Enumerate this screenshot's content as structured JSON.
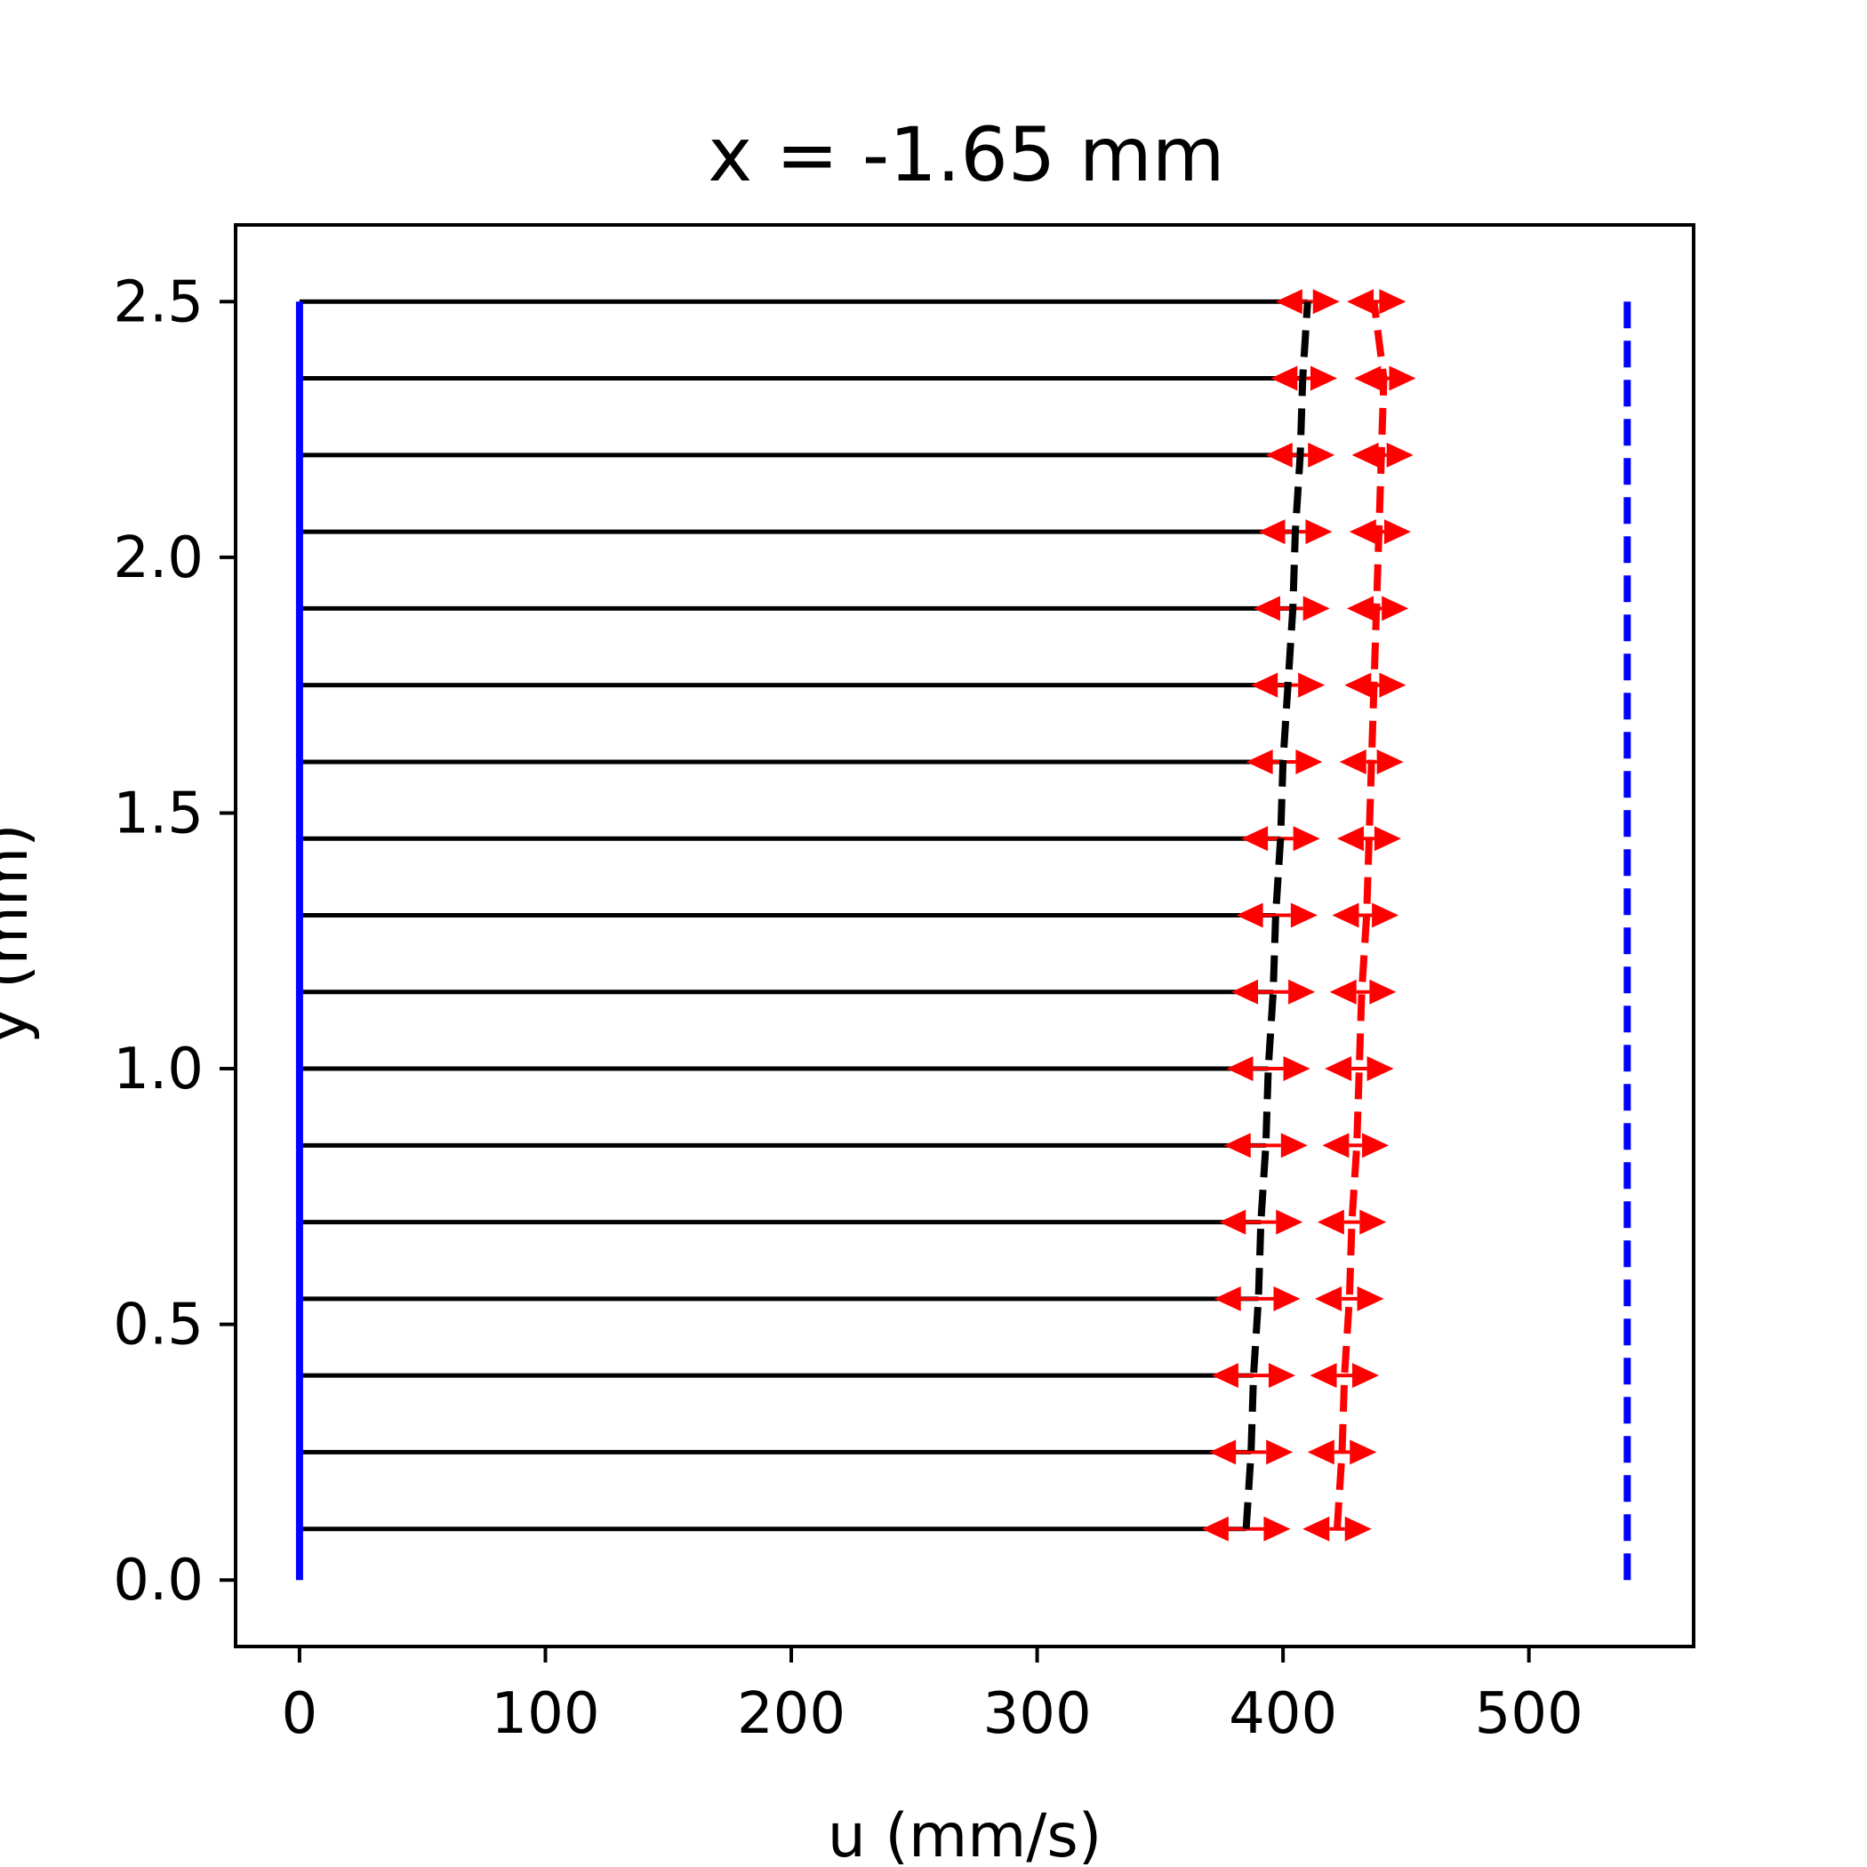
{
  "chart_data": {
    "type": "line",
    "title": "x = -1.65 mm",
    "xlabel": "u (mm/s)",
    "ylabel": "y (mm)",
    "xlim": [
      -26,
      567
    ],
    "ylim": [
      -0.13,
      2.65
    ],
    "xticks": [
      0,
      100,
      200,
      300,
      400,
      500
    ],
    "xtick_labels": [
      "0",
      "100",
      "200",
      "300",
      "400",
      "500"
    ],
    "yticks": [
      0.0,
      0.5,
      1.0,
      1.5,
      2.0,
      2.5
    ],
    "ytick_labels": [
      "0.0",
      "0.5",
      "1.0",
      "1.5",
      "2.0",
      "2.5"
    ],
    "grid": false,
    "legend": "none",
    "y": [
      0.1,
      0.25,
      0.4,
      0.55,
      0.7,
      0.85,
      1.0,
      1.15,
      1.3,
      1.45,
      1.6,
      1.75,
      1.9,
      2.05,
      2.2,
      2.35,
      2.5
    ],
    "series": [
      {
        "style": "velocity-vectors",
        "color": "#000000",
        "u": [
          385,
          387,
          388,
          390,
          391,
          393,
          394,
          396,
          397,
          399,
          400,
          402,
          404,
          405,
          407,
          408,
          410
        ]
      },
      {
        "style": "dashed-line",
        "color": "#000000",
        "u": [
          385,
          387,
          388,
          390,
          391,
          393,
          394,
          396,
          397,
          399,
          400,
          402,
          404,
          405,
          407,
          408,
          410
        ]
      },
      {
        "style": "dashed-line",
        "color": "#ff0000",
        "u": [
          422,
          424,
          425,
          427,
          428,
          430,
          431,
          432,
          434,
          435,
          436,
          437,
          438,
          439,
          440,
          441,
          437
        ]
      },
      {
        "style": "error-arrows",
        "color": "#ff0000",
        "left_low": [
          367,
          370,
          371,
          372,
          374,
          376,
          377,
          379,
          381,
          383,
          385,
          387,
          388,
          390,
          393,
          395,
          397
        ],
        "left_high": [
          403,
          404,
          405,
          407,
          408,
          410,
          411,
          413,
          414,
          415,
          416,
          417,
          419,
          420,
          421,
          422,
          423
        ],
        "right_low": [
          408,
          410,
          411,
          413,
          414,
          416,
          417,
          419,
          420,
          422,
          423,
          425,
          426,
          427,
          428,
          429,
          426
        ],
        "right_high": [
          436,
          438,
          439,
          441,
          442,
          443,
          445,
          446,
          447,
          448,
          449,
          450,
          451,
          452,
          453,
          454,
          450
        ]
      },
      {
        "style": "solid-vertical",
        "color": "#0000ff",
        "u": [
          0,
          0
        ],
        "y": [
          0,
          2.5
        ]
      },
      {
        "style": "dashed-vertical",
        "color": "#0000ff",
        "u": [
          540,
          540
        ],
        "y": [
          0,
          2.5
        ]
      }
    ]
  }
}
